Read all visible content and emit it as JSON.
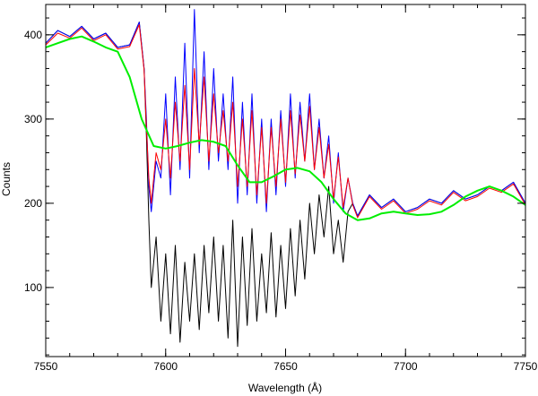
{
  "chart_data": {
    "type": "line",
    "title": "",
    "xlabel": "Wavelength (Å)",
    "ylabel": "Counts",
    "xlim": [
      7550,
      7750
    ],
    "ylim": [
      18,
      436
    ],
    "grid": false,
    "legend": "none",
    "x_ticks": [
      {
        "value": 7550,
        "label": "7550"
      },
      {
        "value": 7600,
        "label": "7600"
      },
      {
        "value": 7650,
        "label": "7650"
      },
      {
        "value": 7700,
        "label": "7700"
      },
      {
        "value": 7750,
        "label": "7750"
      }
    ],
    "y_ticks": [
      {
        "value": 100,
        "label": "100"
      },
      {
        "value": 200,
        "label": "200"
      },
      {
        "value": 300,
        "label": "300"
      },
      {
        "value": 400,
        "label": "400"
      }
    ],
    "x_minor_step": 10,
    "y_minor_step": 20,
    "series": [
      {
        "color": "#000000",
        "x": [
          7550,
          7555,
          7560,
          7565,
          7570,
          7575,
          7580,
          7585,
          7589,
          7591,
          7592,
          7593,
          7594,
          7596,
          7598,
          7600,
          7602,
          7604,
          7606,
          7608,
          7610,
          7612,
          7614,
          7616,
          7618,
          7620,
          7622,
          7624,
          7626,
          7628,
          7630,
          7632,
          7634,
          7636,
          7638,
          7640,
          7642,
          7644,
          7646,
          7648,
          7650,
          7652,
          7654,
          7656,
          7658,
          7660,
          7662,
          7664,
          7666,
          7668,
          7670,
          7672,
          7674,
          7676,
          7678,
          7680,
          7685,
          7690,
          7695,
          7700,
          7705,
          7710,
          7715,
          7720,
          7725,
          7730,
          7735,
          7740,
          7745,
          7750
        ],
        "y": [
          390,
          405,
          398,
          410,
          395,
          402,
          385,
          388,
          415,
          360,
          280,
          180,
          100,
          160,
          60,
          140,
          45,
          150,
          35,
          130,
          60,
          140,
          50,
          150,
          70,
          160,
          60,
          150,
          40,
          180,
          30,
          160,
          55,
          170,
          60,
          140,
          70,
          165,
          65,
          150,
          75,
          170,
          90,
          180,
          110,
          200,
          140,
          210,
          160,
          220,
          140,
          180,
          130,
          190,
          200,
          185,
          210,
          195,
          205,
          190,
          195,
          205,
          200,
          215,
          205,
          210,
          220,
          215,
          225,
          200
        ],
        "linewidth": 1
      },
      {
        "color": "#0000ff",
        "x": [
          7550,
          7555,
          7560,
          7565,
          7570,
          7575,
          7580,
          7585,
          7589,
          7591,
          7592,
          7593,
          7594,
          7596,
          7598,
          7600,
          7602,
          7604,
          7606,
          7608,
          7610,
          7612,
          7614,
          7616,
          7618,
          7620,
          7622,
          7624,
          7626,
          7628,
          7630,
          7632,
          7634,
          7636,
          7638,
          7640,
          7642,
          7644,
          7646,
          7648,
          7650,
          7652,
          7654,
          7656,
          7658,
          7660,
          7662,
          7664,
          7666,
          7668,
          7670,
          7672,
          7674,
          7676,
          7678,
          7680,
          7685,
          7690,
          7695,
          7700,
          7705,
          7710,
          7715,
          7720,
          7725,
          7730,
          7735,
          7740,
          7745,
          7750
        ],
        "y": [
          390,
          405,
          398,
          410,
          395,
          402,
          385,
          388,
          415,
          360,
          300,
          220,
          190,
          250,
          230,
          330,
          210,
          350,
          240,
          390,
          230,
          430,
          260,
          380,
          240,
          360,
          250,
          330,
          240,
          350,
          200,
          320,
          210,
          330,
          200,
          300,
          190,
          300,
          210,
          310,
          220,
          330,
          230,
          320,
          250,
          330,
          240,
          300,
          230,
          280,
          200,
          260,
          190,
          230,
          200,
          185,
          210,
          195,
          205,
          190,
          195,
          205,
          200,
          215,
          205,
          210,
          220,
          215,
          225,
          200
        ],
        "linewidth": 1
      },
      {
        "color": "#ff0000",
        "x": [
          7550,
          7555,
          7560,
          7565,
          7570,
          7575,
          7580,
          7585,
          7589,
          7591,
          7592,
          7593,
          7594,
          7596,
          7598,
          7600,
          7602,
          7604,
          7606,
          7608,
          7610,
          7612,
          7614,
          7616,
          7618,
          7620,
          7622,
          7624,
          7626,
          7628,
          7630,
          7632,
          7634,
          7636,
          7638,
          7640,
          7642,
          7644,
          7646,
          7648,
          7650,
          7652,
          7654,
          7656,
          7658,
          7660,
          7662,
          7664,
          7666,
          7668,
          7670,
          7672,
          7674,
          7676,
          7678,
          7680,
          7685,
          7690,
          7695,
          7700,
          7705,
          7710,
          7715,
          7720,
          7725,
          7730,
          7735,
          7740,
          7745,
          7750
        ],
        "y": [
          388,
          402,
          396,
          408,
          393,
          400,
          383,
          386,
          412,
          358,
          290,
          230,
          200,
          260,
          240,
          300,
          230,
          320,
          250,
          340,
          240,
          360,
          270,
          350,
          250,
          330,
          260,
          310,
          250,
          320,
          220,
          300,
          220,
          310,
          210,
          290,
          200,
          290,
          220,
          300,
          225,
          310,
          235,
          305,
          250,
          315,
          240,
          290,
          230,
          270,
          205,
          255,
          195,
          230,
          198,
          183,
          208,
          193,
          203,
          188,
          193,
          203,
          198,
          213,
          203,
          208,
          218,
          213,
          223,
          198
        ],
        "linewidth": 1
      },
      {
        "color": "#00ee00",
        "x": [
          7550,
          7555,
          7560,
          7565,
          7570,
          7575,
          7580,
          7585,
          7590,
          7595,
          7600,
          7605,
          7610,
          7615,
          7620,
          7625,
          7630,
          7635,
          7640,
          7645,
          7650,
          7655,
          7660,
          7665,
          7670,
          7675,
          7680,
          7685,
          7690,
          7695,
          7700,
          7705,
          7710,
          7715,
          7720,
          7725,
          7730,
          7735,
          7740,
          7745,
          7750
        ],
        "y": [
          385,
          390,
          395,
          398,
          392,
          385,
          380,
          350,
          300,
          268,
          265,
          268,
          272,
          275,
          273,
          268,
          245,
          225,
          225,
          232,
          240,
          242,
          238,
          225,
          205,
          188,
          180,
          182,
          188,
          190,
          188,
          186,
          187,
          190,
          198,
          208,
          215,
          220,
          215,
          208,
          198
        ],
        "linewidth": 2
      }
    ]
  }
}
